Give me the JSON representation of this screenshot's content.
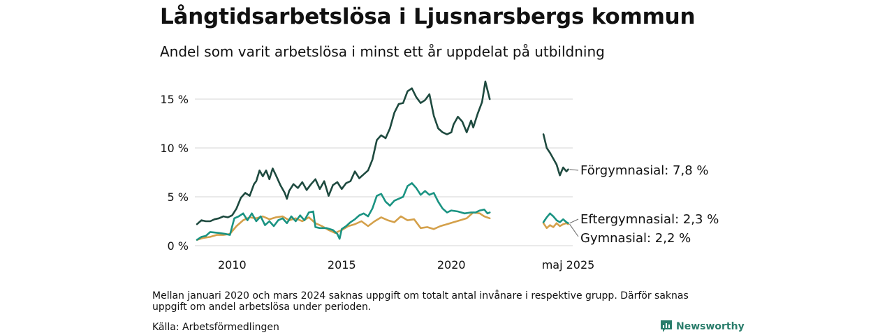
{
  "title": "Långtidsarbetslösa i Ljusnarsbergs kommun",
  "subtitle": "Andel som varit arbetslösa i minst ett år uppdelat på utbildning",
  "note": "Mellan januari 2020 och mars 2024 saknas uppgift om totalt antal invånare i respektive grupp. Därför saknas uppgift om andel arbetslösa under perioden.",
  "source": "Källa: Arbetsförmedlingen",
  "brand": "Newsworthy",
  "colors": {
    "forgymnasial": "#1e4a3f",
    "eftergymnasial": "#1a9382",
    "gymnasial": "#d4a04a",
    "grid": "#dddddd",
    "brand": "#2a7d6b"
  },
  "chart_data": {
    "type": "line",
    "x_unit": "year",
    "xlim": [
      2008.3,
      2025.6
    ],
    "ylim": [
      0,
      17
    ],
    "y_ticks": [
      0,
      5,
      10,
      15
    ],
    "y_tick_labels": [
      "0 %",
      "5 %",
      "10 %",
      "15 %"
    ],
    "x_ticks": [
      2010,
      2015,
      2020,
      2025.33
    ],
    "x_tick_labels": [
      "2010",
      "2015",
      "2020",
      "maj 2025"
    ],
    "grid": "horizontal",
    "series": [
      {
        "name": "Förgymnasial",
        "end_label": "Förgymnasial: 7,8 %",
        "color_key": "forgymnasial",
        "segments": [
          [
            [
              2008.4,
              2.2
            ],
            [
              2008.6,
              2.6
            ],
            [
              2008.8,
              2.5
            ],
            [
              2009.0,
              2.5
            ],
            [
              2009.2,
              2.7
            ],
            [
              2009.4,
              2.8
            ],
            [
              2009.6,
              3.0
            ],
            [
              2009.8,
              2.9
            ],
            [
              2010.0,
              3.1
            ],
            [
              2010.2,
              3.8
            ],
            [
              2010.4,
              4.9
            ],
            [
              2010.6,
              5.4
            ],
            [
              2010.8,
              5.1
            ],
            [
              2011.0,
              6.3
            ],
            [
              2011.1,
              6.6
            ],
            [
              2011.25,
              7.7
            ],
            [
              2011.4,
              7.1
            ],
            [
              2011.55,
              7.7
            ],
            [
              2011.7,
              6.8
            ],
            [
              2011.85,
              7.9
            ],
            [
              2012.0,
              7.2
            ],
            [
              2012.2,
              6.2
            ],
            [
              2012.4,
              5.4
            ],
            [
              2012.5,
              4.8
            ],
            [
              2012.6,
              5.6
            ],
            [
              2012.8,
              6.3
            ],
            [
              2013.0,
              5.9
            ],
            [
              2013.2,
              6.5
            ],
            [
              2013.4,
              5.7
            ],
            [
              2013.6,
              6.3
            ],
            [
              2013.8,
              6.8
            ],
            [
              2014.0,
              5.8
            ],
            [
              2014.2,
              6.6
            ],
            [
              2014.4,
              5.1
            ],
            [
              2014.6,
              6.2
            ],
            [
              2014.8,
              6.5
            ],
            [
              2015.0,
              5.8
            ],
            [
              2015.2,
              6.4
            ],
            [
              2015.4,
              6.6
            ],
            [
              2015.6,
              7.6
            ],
            [
              2015.8,
              6.9
            ],
            [
              2016.0,
              7.3
            ],
            [
              2016.2,
              7.7
            ],
            [
              2016.4,
              8.8
            ],
            [
              2016.6,
              10.8
            ],
            [
              2016.8,
              11.3
            ],
            [
              2017.0,
              11.0
            ],
            [
              2017.2,
              12.0
            ],
            [
              2017.4,
              13.6
            ],
            [
              2017.6,
              14.5
            ],
            [
              2017.8,
              14.6
            ],
            [
              2018.0,
              15.8
            ],
            [
              2018.2,
              16.1
            ],
            [
              2018.4,
              15.2
            ],
            [
              2018.6,
              14.6
            ],
            [
              2018.8,
              14.9
            ],
            [
              2019.0,
              15.5
            ],
            [
              2019.2,
              13.3
            ],
            [
              2019.4,
              12.0
            ],
            [
              2019.6,
              11.6
            ],
            [
              2019.8,
              11.4
            ],
            [
              2020.0,
              11.6
            ],
            [
              2020.1,
              12.4
            ],
            [
              2020.3,
              13.2
            ],
            [
              2020.5,
              12.7
            ],
            [
              2020.7,
              11.6
            ],
            [
              2020.9,
              12.8
            ],
            [
              2021.0,
              12.1
            ],
            [
              2021.2,
              13.5
            ],
            [
              2021.4,
              14.7
            ],
            [
              2021.55,
              16.8
            ],
            [
              2021.75,
              15.0
            ]
          ],
          [
            [
              2024.2,
              11.4
            ],
            [
              2024.35,
              10.0
            ],
            [
              2024.5,
              9.5
            ],
            [
              2024.65,
              8.9
            ],
            [
              2024.8,
              8.3
            ],
            [
              2024.95,
              7.2
            ],
            [
              2025.1,
              8.0
            ],
            [
              2025.25,
              7.6
            ],
            [
              2025.33,
              7.8
            ]
          ]
        ]
      },
      {
        "name": "Eftergymnasial",
        "end_label": "Eftergymnasial: 2,3 %",
        "color_key": "eftergymnasial",
        "segments": [
          [
            [
              2008.4,
              0.6
            ],
            [
              2008.6,
              0.9
            ],
            [
              2008.8,
              1.0
            ],
            [
              2009.0,
              1.4
            ],
            [
              2009.4,
              1.3
            ],
            [
              2009.7,
              1.2
            ],
            [
              2009.9,
              1.1
            ],
            [
              2010.1,
              2.8
            ],
            [
              2010.3,
              3.0
            ],
            [
              2010.5,
              3.3
            ],
            [
              2010.7,
              2.6
            ],
            [
              2010.9,
              3.3
            ],
            [
              2011.1,
              2.5
            ],
            [
              2011.3,
              3.0
            ],
            [
              2011.5,
              2.1
            ],
            [
              2011.7,
              2.5
            ],
            [
              2011.9,
              2.0
            ],
            [
              2012.1,
              2.6
            ],
            [
              2012.3,
              2.8
            ],
            [
              2012.5,
              2.3
            ],
            [
              2012.7,
              3.0
            ],
            [
              2012.9,
              2.5
            ],
            [
              2013.1,
              3.1
            ],
            [
              2013.3,
              2.6
            ],
            [
              2013.5,
              3.4
            ],
            [
              2013.7,
              3.5
            ],
            [
              2013.8,
              1.9
            ],
            [
              2014.0,
              1.8
            ],
            [
              2014.3,
              1.8
            ],
            [
              2014.6,
              1.6
            ],
            [
              2014.8,
              1.2
            ],
            [
              2014.9,
              0.7
            ],
            [
              2015.0,
              1.7
            ],
            [
              2015.2,
              2.0
            ],
            [
              2015.4,
              2.4
            ],
            [
              2015.6,
              2.7
            ],
            [
              2015.8,
              3.1
            ],
            [
              2016.0,
              3.3
            ],
            [
              2016.2,
              3.0
            ],
            [
              2016.4,
              3.8
            ],
            [
              2016.6,
              5.1
            ],
            [
              2016.8,
              5.3
            ],
            [
              2017.0,
              4.5
            ],
            [
              2017.2,
              4.1
            ],
            [
              2017.4,
              4.6
            ],
            [
              2017.6,
              4.8
            ],
            [
              2017.8,
              5.0
            ],
            [
              2018.0,
              6.1
            ],
            [
              2018.2,
              6.4
            ],
            [
              2018.4,
              5.9
            ],
            [
              2018.6,
              5.2
            ],
            [
              2018.8,
              5.6
            ],
            [
              2019.0,
              5.2
            ],
            [
              2019.2,
              5.4
            ],
            [
              2019.4,
              4.5
            ],
            [
              2019.6,
              3.8
            ],
            [
              2019.8,
              3.4
            ],
            [
              2020.0,
              3.6
            ],
            [
              2020.3,
              3.5
            ],
            [
              2020.6,
              3.3
            ],
            [
              2020.9,
              3.4
            ],
            [
              2021.1,
              3.4
            ],
            [
              2021.3,
              3.6
            ],
            [
              2021.5,
              3.7
            ],
            [
              2021.65,
              3.3
            ],
            [
              2021.75,
              3.4
            ]
          ],
          [
            [
              2024.2,
              2.4
            ],
            [
              2024.35,
              2.9
            ],
            [
              2024.5,
              3.3
            ],
            [
              2024.65,
              3.0
            ],
            [
              2024.8,
              2.6
            ],
            [
              2024.95,
              2.4
            ],
            [
              2025.1,
              2.7
            ],
            [
              2025.25,
              2.4
            ],
            [
              2025.33,
              2.3
            ]
          ]
        ]
      },
      {
        "name": "Gymnasial",
        "end_label": "Gymnasial: 2,2 %",
        "color_key": "gymnasial",
        "segments": [
          [
            [
              2008.4,
              0.6
            ],
            [
              2008.7,
              0.8
            ],
            [
              2009.0,
              0.9
            ],
            [
              2009.3,
              1.1
            ],
            [
              2009.6,
              1.1
            ],
            [
              2009.9,
              1.2
            ],
            [
              2010.2,
              2.0
            ],
            [
              2010.5,
              2.6
            ],
            [
              2010.8,
              2.9
            ],
            [
              2011.1,
              2.8
            ],
            [
              2011.4,
              3.0
            ],
            [
              2011.7,
              2.7
            ],
            [
              2012.0,
              2.9
            ],
            [
              2012.3,
              3.0
            ],
            [
              2012.6,
              2.6
            ],
            [
              2012.9,
              2.8
            ],
            [
              2013.2,
              2.5
            ],
            [
              2013.5,
              2.9
            ],
            [
              2013.8,
              2.3
            ],
            [
              2014.1,
              2.0
            ],
            [
              2014.4,
              1.6
            ],
            [
              2014.7,
              1.3
            ],
            [
              2015.0,
              1.6
            ],
            [
              2015.3,
              2.0
            ],
            [
              2015.6,
              2.2
            ],
            [
              2015.9,
              2.5
            ],
            [
              2016.2,
              2.0
            ],
            [
              2016.5,
              2.5
            ],
            [
              2016.8,
              2.9
            ],
            [
              2017.1,
              2.6
            ],
            [
              2017.4,
              2.4
            ],
            [
              2017.7,
              3.0
            ],
            [
              2018.0,
              2.6
            ],
            [
              2018.3,
              2.7
            ],
            [
              2018.6,
              1.8
            ],
            [
              2018.9,
              1.9
            ],
            [
              2019.2,
              1.7
            ],
            [
              2019.5,
              2.0
            ],
            [
              2019.8,
              2.2
            ],
            [
              2020.1,
              2.4
            ],
            [
              2020.4,
              2.6
            ],
            [
              2020.7,
              2.8
            ],
            [
              2021.0,
              3.4
            ],
            [
              2021.3,
              3.3
            ],
            [
              2021.5,
              3.0
            ],
            [
              2021.75,
              2.8
            ]
          ],
          [
            [
              2024.2,
              2.3
            ],
            [
              2024.35,
              1.8
            ],
            [
              2024.5,
              2.1
            ],
            [
              2024.65,
              1.9
            ],
            [
              2024.8,
              2.3
            ],
            [
              2024.95,
              2.0
            ],
            [
              2025.1,
              2.2
            ],
            [
              2025.25,
              2.3
            ],
            [
              2025.33,
              2.2
            ]
          ]
        ]
      }
    ]
  }
}
